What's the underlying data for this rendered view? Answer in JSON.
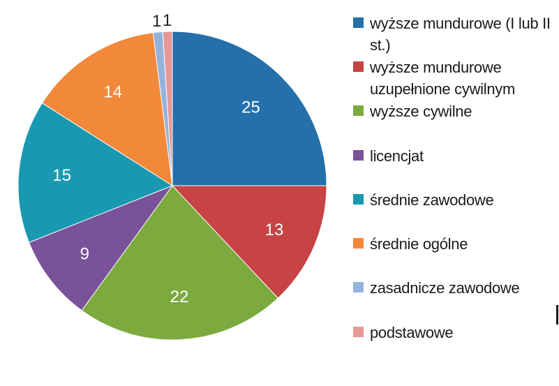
{
  "chart_data": {
    "type": "pie",
    "title": "",
    "slices": [
      {
        "label": "wyższe mundurowe (I lub II st.)",
        "value": 25,
        "color": "#2370aa"
      },
      {
        "label": "wyższe mundurowe uzupełnione cywilnym",
        "value": 13,
        "color": "#c74344"
      },
      {
        "label": "wyższe cywilne",
        "value": 22,
        "color": "#7caa3f"
      },
      {
        "label": "licencjat",
        "value": 9,
        "color": "#795299"
      },
      {
        "label": "średnie zawodowe",
        "value": 15,
        "color": "#1899b1"
      },
      {
        "label": "średnie ogólne",
        "value": 14,
        "color": "#f2883a"
      },
      {
        "label": "zasadnicze zawodowe",
        "value": 1,
        "color": "#94b3dc"
      },
      {
        "label": "podstawowe",
        "value": 1,
        "color": "#e69896"
      }
    ],
    "legend_position": "right",
    "start_angle": "12 o'clock",
    "direction": "clockwise"
  }
}
